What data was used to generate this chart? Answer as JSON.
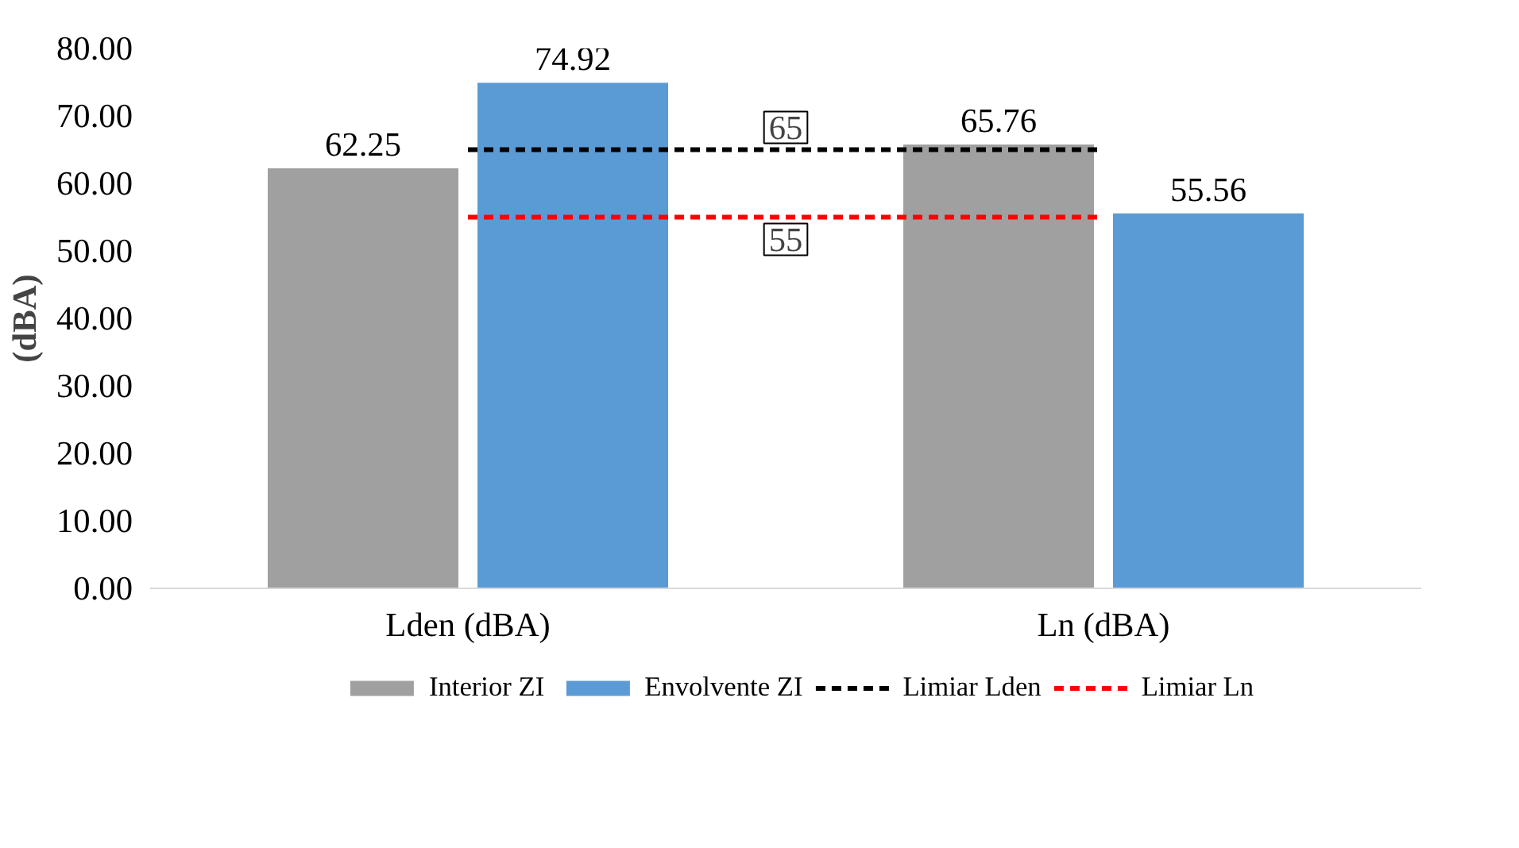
{
  "chart_data": {
    "type": "bar",
    "ylabel": "(dBA)",
    "categories": [
      "Lden (dBA)",
      "Ln (dBA)"
    ],
    "series": [
      {
        "name": "Interior ZI",
        "color": "#a0a0a0",
        "values": [
          62.25,
          65.76
        ],
        "value_labels": [
          "62.25",
          "65.76"
        ]
      },
      {
        "name": "Envolvente ZI",
        "color": "#5b9bd5",
        "values": [
          74.92,
          55.56
        ],
        "value_labels": [
          "74.92",
          "55.56"
        ]
      },
      {
        "name": "Limiar Lden",
        "type": "line",
        "color": "#000000",
        "line_style": "dashed",
        "values": [
          65,
          65
        ]
      },
      {
        "name": "Limiar Ln",
        "type": "line",
        "color": "#ff0000",
        "line_style": "dashed",
        "values": [
          55,
          55
        ]
      }
    ],
    "annotations": [
      {
        "text": "65",
        "y": 65
      },
      {
        "text": "55",
        "y": 55
      }
    ],
    "ylim": [
      0,
      80
    ],
    "yticks": [
      {
        "value": 0,
        "label": "0.00"
      },
      {
        "value": 10,
        "label": "10.00"
      },
      {
        "value": 20,
        "label": "20.00"
      },
      {
        "value": 30,
        "label": "30.00"
      },
      {
        "value": 40,
        "label": "40.00"
      },
      {
        "value": 50,
        "label": "50.00"
      },
      {
        "value": 60,
        "label": "60.00"
      },
      {
        "value": 70,
        "label": "70.00"
      },
      {
        "value": 80,
        "label": "80.00"
      }
    ],
    "grid": false,
    "legend": "bottom"
  }
}
